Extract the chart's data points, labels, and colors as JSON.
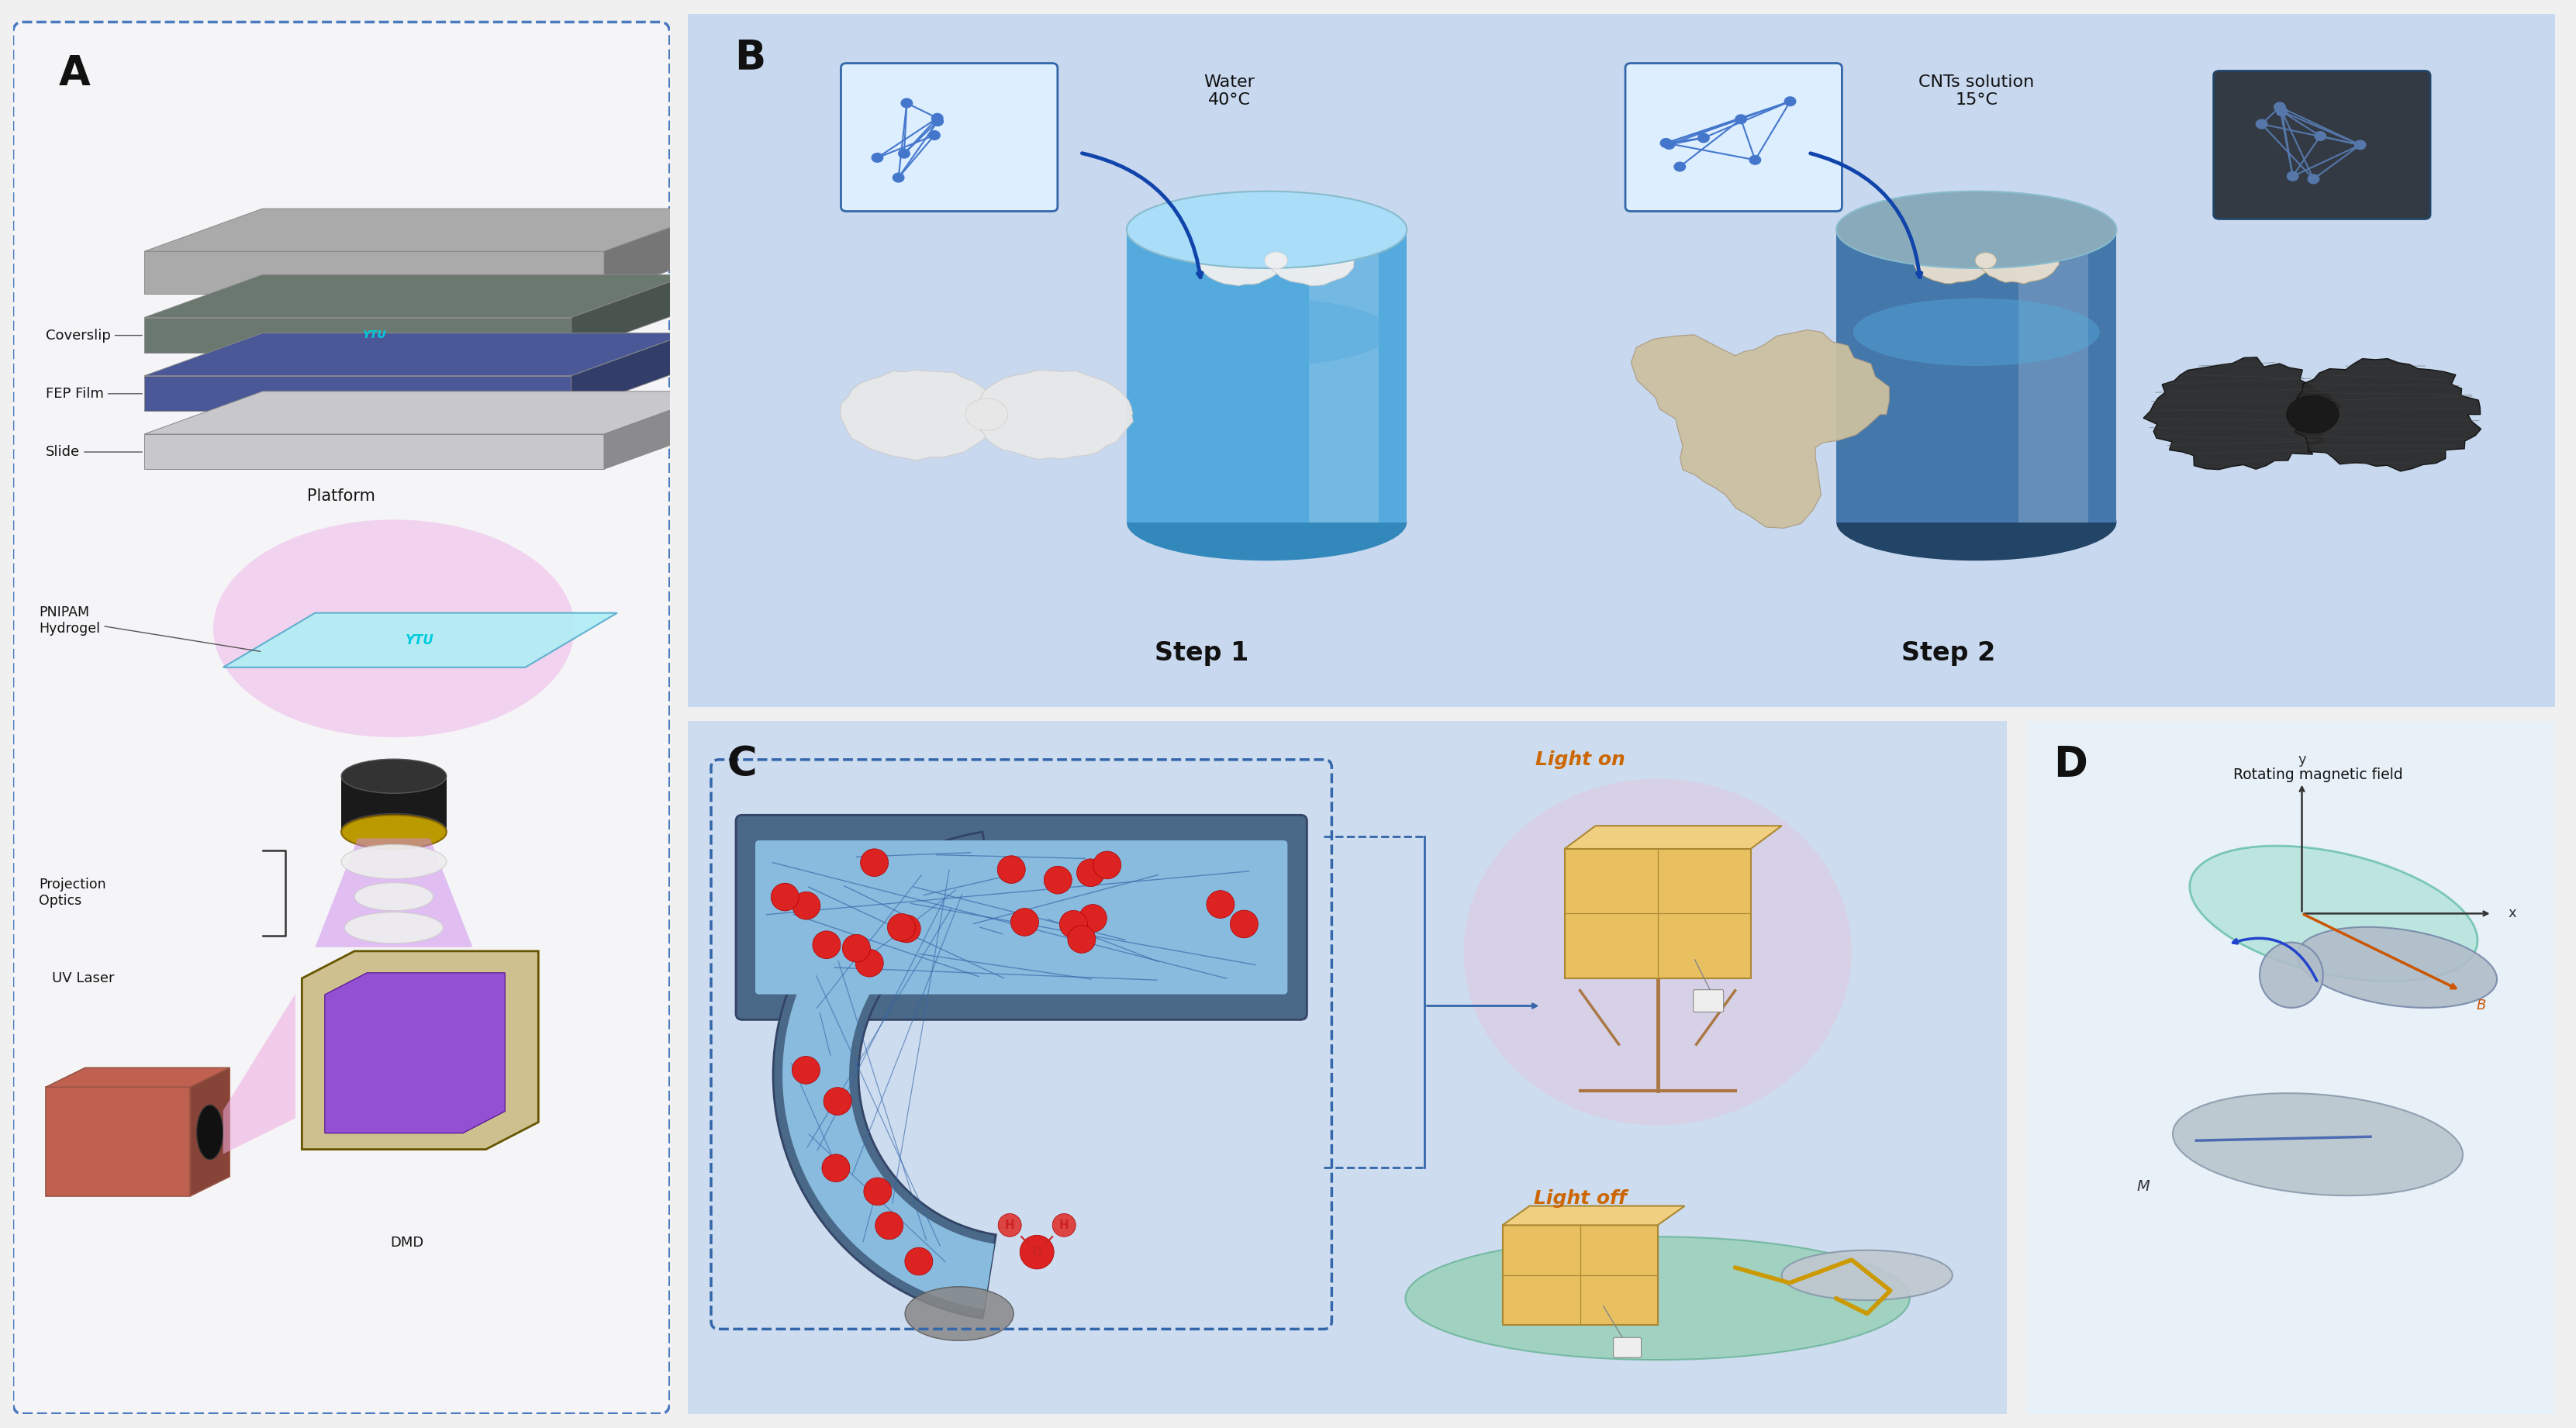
{
  "figure_width": 33.22,
  "figure_height": 18.42,
  "background_color": "#f0f0f0",
  "panel_A": {
    "label": "A",
    "bg": "#f5f5f8",
    "border": "#4a7abf",
    "slide_color": "#c8c8cc",
    "fep_color": "#4a5898",
    "coverslip_color": "#6a7870",
    "base_color": "#aaaaaa"
  },
  "panel_B": {
    "label": "B",
    "bg": "#c8d8ee",
    "step1": "Step 1",
    "step2": "Step 2",
    "water": "Water\n40°C",
    "cnts": "CNTs solution\n15°C",
    "container1_top": "#aaddf8",
    "container1_bot": "#55aadd",
    "container2_top": "#88aabb",
    "container2_bot": "#4477aa"
  },
  "panel_C": {
    "label": "C",
    "bg_top": "#c8d8ee",
    "bg_bot": "#d8e8f5",
    "light_on": "Light on",
    "light_off": "Light off",
    "tube_dark": "#4a6a88",
    "tube_light": "#88bbdd",
    "arc_dark": "#4a6a88",
    "arc_light": "#88bbdd"
  },
  "panel_D": {
    "label": "D",
    "bg": "#e8f0f8",
    "title": "Rotating magnetic field",
    "ell_color": "#99ddcc",
    "hydrogel_color": "#b8c4cc",
    "B_color": "#cc5500",
    "arrow_color": "#2255bb"
  },
  "colors": {
    "dashed_border": "#4a7abf",
    "light_on_color": "#cc6600",
    "arrow_blue": "#2255aa"
  }
}
